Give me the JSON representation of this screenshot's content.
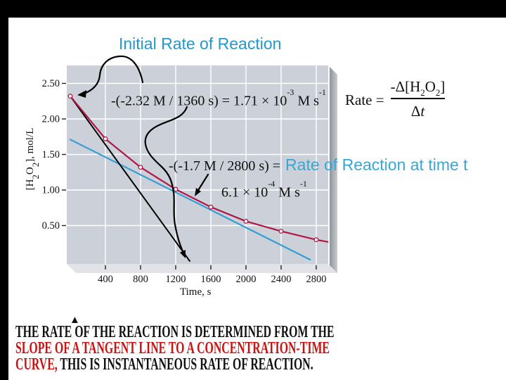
{
  "title": "Initial Rate of Reaction",
  "formula": {
    "lhs": "Rate =",
    "numerator": {
      "p1": "-Δ[H",
      "s1": "2",
      "p2": "O",
      "s2": "2",
      "p3": "]"
    },
    "denominator": {
      "p1": "Δ",
      "p2": "t"
    }
  },
  "annotations": {
    "initial_slope": {
      "base": "-(-2.32 M / 1360 s) = 1.71 × 10",
      "sup1": "-3",
      "mid": " M s",
      "sup2": "-1"
    },
    "tangent_slope": {
      "base": "-(-1.7 M / 2800 s) ="
    },
    "tangent_label": "Rate of Reaction at time t",
    "tangent_value": {
      "base": "6.1 × 10",
      "sup1": "-4",
      "mid": " M s",
      "sup2": "-1"
    }
  },
  "chart_data": {
    "type": "line",
    "title": "",
    "xlabel": "Time, s",
    "ylabel_parts": {
      "p1": "[H",
      "s1": "2",
      "p2": "O",
      "s2": "2",
      "p3": "], mol/L"
    },
    "x_ticks": [
      400,
      800,
      1200,
      1600,
      2000,
      2400,
      2800
    ],
    "y_ticks": [
      "2.50",
      "2.00",
      "1.50",
      "1.00",
      "0.50"
    ],
    "xlim": [
      -40,
      2940
    ],
    "ylim": [
      0,
      2.79
    ],
    "grid": true,
    "colors": {
      "panel": "#ccd1d9",
      "grid": "#ffffff",
      "tick": "#222222",
      "label": "#111111"
    },
    "series": [
      {
        "name": "[H2O2] concentration curve",
        "color": "#b01745",
        "width": 2.2,
        "markers": true,
        "marker_max_x": 2800,
        "x": [
          0,
          400,
          800,
          1200,
          1600,
          2000,
          2400,
          2800,
          2930
        ],
        "y": [
          2.32,
          1.72,
          1.32,
          1.01,
          0.76,
          0.56,
          0.42,
          0.3,
          0.27
        ]
      },
      {
        "name": "initial-rate tangent line",
        "color": "#000000",
        "width": 2.0,
        "markers": false,
        "x": [
          0,
          1360
        ],
        "y": [
          2.32,
          0.0
        ]
      },
      {
        "name": "tangent line at time t",
        "color": "#359dd4",
        "width": 2.2,
        "markers": false,
        "x": [
          0,
          2730
        ],
        "y": [
          1.71,
          0.02
        ]
      }
    ]
  },
  "footer": {
    "bullet": "▲",
    "line1": "THE RATE OF THE REACTION IS DETERMINED FROM THE",
    "line2": "SLOPE OF A TANGENT LINE TO A CONCENTRATION-TIME",
    "line3_red": "CURVE,",
    "line3_black": " THIS IS INSTANTANEOUS RATE OF REACTION."
  }
}
